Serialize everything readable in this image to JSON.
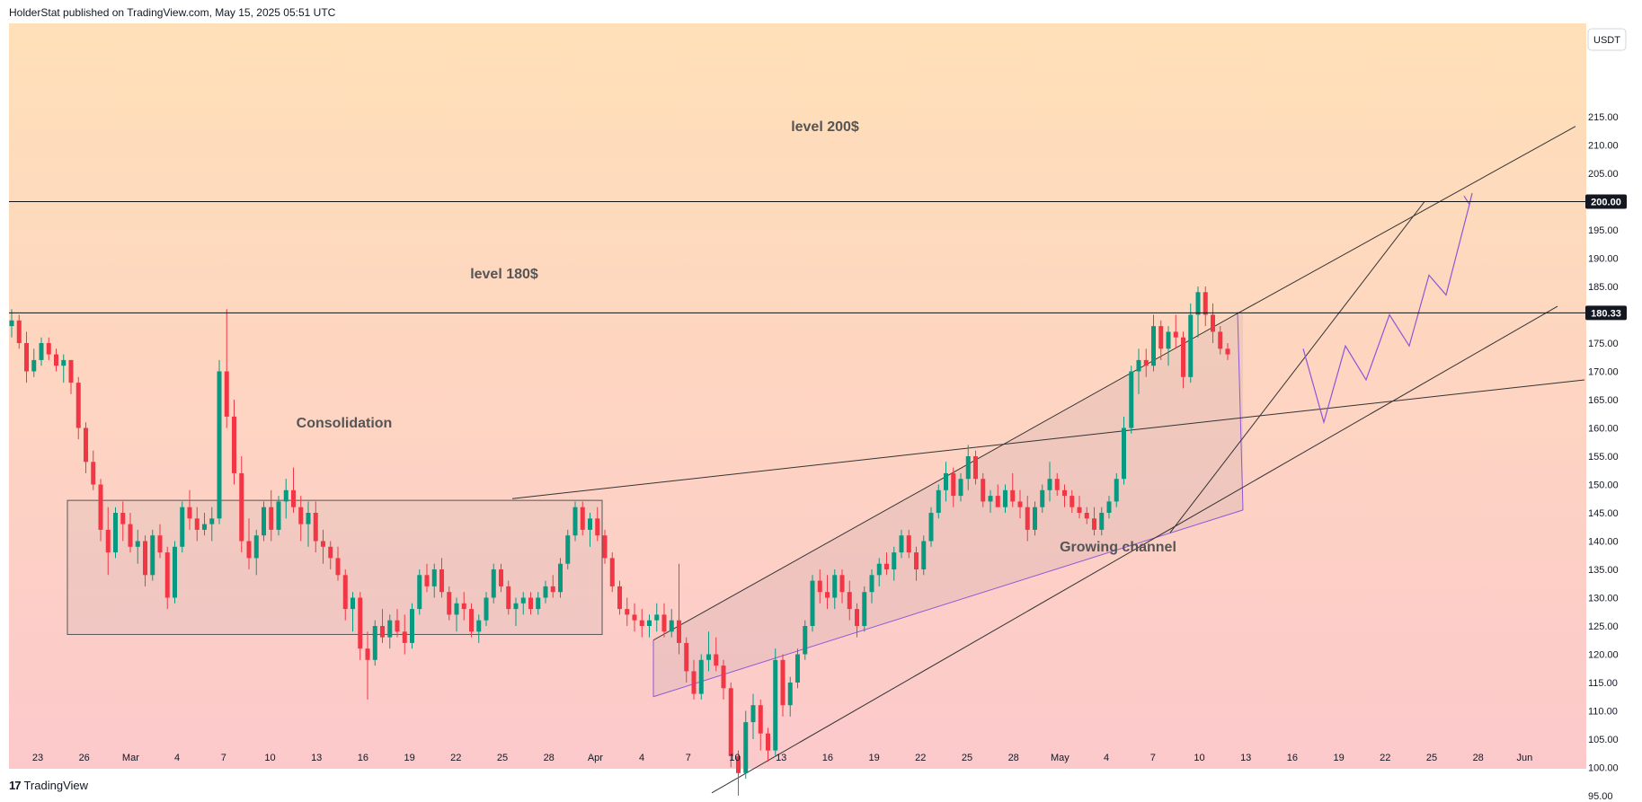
{
  "header": {
    "text": "HolderStat published on TradingView.com, May 15, 2025 05:51 UTC"
  },
  "footer": {
    "logo": "17",
    "brand": "TradingView"
  },
  "colors": {
    "up": "#089981",
    "down": "#f23645",
    "bg_top": "#ffe0b8",
    "bg_bottom": "#fcc9cb",
    "channel": "#8e57d6"
  },
  "chart_data": {
    "type": "candlestick",
    "currency": "USDT",
    "ylim": [
      92,
      220
    ],
    "y_ticks": [
      "215.00",
      "210.00",
      "205.00",
      "195.00",
      "190.00",
      "185.00",
      "175.00",
      "170.00",
      "165.00",
      "160.00",
      "155.00",
      "150.00",
      "145.00",
      "140.00",
      "135.00",
      "130.00",
      "125.00",
      "120.00",
      "115.00",
      "110.00",
      "105.00",
      "100.00",
      "95.00"
    ],
    "price_labels": {
      "level200": "200.00",
      "level180": "180.33"
    },
    "x_ticks": [
      "23",
      "26",
      "Mar",
      "4",
      "7",
      "10",
      "13",
      "16",
      "19",
      "22",
      "25",
      "28",
      "Apr",
      "4",
      "7",
      "10",
      "13",
      "16",
      "19",
      "22",
      "25",
      "28",
      "May",
      "4",
      "7",
      "10",
      "13",
      "16",
      "19",
      "22",
      "25",
      "28",
      "Jun"
    ],
    "annotations": {
      "level200": "level 200$",
      "level180": "level 180$",
      "consolidation": "Consolidation",
      "growing_channel": "Growing channel"
    },
    "candles": [
      [
        178,
        181,
        176,
        179
      ],
      [
        179,
        180,
        174,
        175
      ],
      [
        175,
        177,
        168,
        170
      ],
      [
        170,
        174,
        169,
        172
      ],
      [
        172,
        176,
        171,
        175
      ],
      [
        175,
        176,
        172,
        173
      ],
      [
        173,
        174,
        170,
        171
      ],
      [
        171,
        173,
        168,
        172
      ],
      [
        172,
        172,
        166,
        168
      ],
      [
        168,
        169,
        158,
        160
      ],
      [
        160,
        161,
        152,
        154
      ],
      [
        154,
        156,
        149,
        150
      ],
      [
        150,
        151,
        140,
        142
      ],
      [
        142,
        146,
        134,
        138
      ],
      [
        138,
        146,
        137,
        145
      ],
      [
        145,
        147,
        140,
        143
      ],
      [
        143,
        145,
        138,
        139
      ],
      [
        139,
        142,
        136,
        140
      ],
      [
        140,
        141,
        132,
        134
      ],
      [
        134,
        142,
        133,
        141
      ],
      [
        141,
        143,
        137,
        138
      ],
      [
        138,
        139,
        128,
        130
      ],
      [
        130,
        140,
        129,
        139
      ],
      [
        139,
        147,
        138,
        146
      ],
      [
        146,
        149,
        142,
        144
      ],
      [
        144,
        146,
        140,
        142
      ],
      [
        142,
        145,
        141,
        143
      ],
      [
        143,
        146,
        140,
        144
      ],
      [
        144,
        172,
        143,
        170
      ],
      [
        170,
        181,
        160,
        162
      ],
      [
        162,
        165,
        150,
        152
      ],
      [
        152,
        155,
        138,
        140
      ],
      [
        140,
        144,
        135,
        137
      ],
      [
        137,
        142,
        134,
        141
      ],
      [
        141,
        147,
        140,
        146
      ],
      [
        146,
        149,
        140,
        142
      ],
      [
        142,
        148,
        141,
        147
      ],
      [
        147,
        151,
        144,
        149
      ],
      [
        149,
        153,
        145,
        146
      ],
      [
        146,
        148,
        140,
        143
      ],
      [
        143,
        147,
        139,
        145
      ],
      [
        145,
        147,
        138,
        140
      ],
      [
        140,
        142,
        136,
        139
      ],
      [
        139,
        140,
        135,
        137
      ],
      [
        137,
        139,
        133,
        134
      ],
      [
        134,
        135,
        126,
        128
      ],
      [
        128,
        131,
        124,
        130
      ],
      [
        130,
        131,
        119,
        121
      ],
      [
        121,
        124,
        112,
        119
      ],
      [
        119,
        126,
        118,
        125
      ],
      [
        125,
        128,
        122,
        123
      ],
      [
        123,
        127,
        121,
        126
      ],
      [
        126,
        128,
        123,
        124
      ],
      [
        124,
        127,
        120,
        122
      ],
      [
        122,
        129,
        121,
        128
      ],
      [
        128,
        135,
        127,
        134
      ],
      [
        134,
        136,
        131,
        132
      ],
      [
        132,
        136,
        130,
        135
      ],
      [
        135,
        137,
        130,
        131
      ],
      [
        131,
        132,
        126,
        127
      ],
      [
        127,
        130,
        124,
        129
      ],
      [
        129,
        131,
        126,
        128
      ],
      [
        128,
        129,
        123,
        124
      ],
      [
        124,
        127,
        122,
        126
      ],
      [
        126,
        131,
        125,
        130
      ],
      [
        130,
        136,
        129,
        135
      ],
      [
        135,
        136,
        131,
        132
      ],
      [
        132,
        133,
        127,
        128
      ],
      [
        128,
        130,
        125,
        129
      ],
      [
        129,
        131,
        127,
        130
      ],
      [
        130,
        131,
        127,
        128
      ],
      [
        128,
        131,
        127,
        130
      ],
      [
        130,
        133,
        129,
        132
      ],
      [
        132,
        134,
        130,
        131
      ],
      [
        131,
        137,
        130,
        136
      ],
      [
        136,
        142,
        135,
        141
      ],
      [
        141,
        147,
        140,
        146
      ],
      [
        146,
        147,
        141,
        142
      ],
      [
        142,
        145,
        139,
        144
      ],
      [
        144,
        146,
        140,
        141
      ],
      [
        141,
        142,
        136,
        137
      ],
      [
        137,
        138,
        131,
        132
      ],
      [
        132,
        133,
        127,
        128
      ],
      [
        128,
        130,
        125,
        127
      ],
      [
        127,
        129,
        124,
        126
      ],
      [
        126,
        128,
        123,
        125
      ],
      [
        125,
        127,
        123,
        126
      ],
      [
        126,
        129,
        124,
        127
      ],
      [
        127,
        129,
        123,
        124
      ],
      [
        124,
        128,
        123,
        126
      ],
      [
        126,
        136,
        120,
        122
      ],
      [
        122,
        123,
        115,
        117
      ],
      [
        117,
        119,
        112,
        113
      ],
      [
        113,
        120,
        112,
        119
      ],
      [
        119,
        124,
        117,
        120
      ],
      [
        120,
        123,
        117,
        118
      ],
      [
        118,
        119,
        112,
        114
      ],
      [
        114,
        115,
        100,
        102
      ],
      [
        102,
        103,
        95,
        99
      ],
      [
        99,
        110,
        98,
        108
      ],
      [
        108,
        113,
        105,
        111
      ],
      [
        111,
        112,
        103,
        106
      ],
      [
        106,
        107,
        101,
        103
      ],
      [
        103,
        121,
        102,
        119
      ],
      [
        119,
        120,
        109,
        111
      ],
      [
        111,
        116,
        109,
        115
      ],
      [
        115,
        121,
        114,
        120
      ],
      [
        120,
        126,
        119,
        125
      ],
      [
        125,
        134,
        124,
        133
      ],
      [
        133,
        135,
        129,
        131
      ],
      [
        131,
        134,
        128,
        130
      ],
      [
        130,
        135,
        128,
        134
      ],
      [
        134,
        135,
        129,
        131
      ],
      [
        131,
        133,
        126,
        128
      ],
      [
        128,
        129,
        123,
        125
      ],
      [
        125,
        132,
        124,
        131
      ],
      [
        131,
        135,
        129,
        134
      ],
      [
        134,
        137,
        132,
        136
      ],
      [
        136,
        138,
        134,
        135
      ],
      [
        135,
        139,
        133,
        138
      ],
      [
        138,
        142,
        137,
        141
      ],
      [
        141,
        142,
        137,
        138
      ],
      [
        138,
        139,
        133,
        135
      ],
      [
        135,
        141,
        134,
        140
      ],
      [
        140,
        146,
        139,
        145
      ],
      [
        145,
        150,
        144,
        149
      ],
      [
        149,
        154,
        147,
        152
      ],
      [
        152,
        153,
        146,
        148
      ],
      [
        148,
        152,
        147,
        151
      ],
      [
        151,
        157,
        149,
        155
      ],
      [
        155,
        156,
        150,
        151
      ],
      [
        151,
        152,
        146,
        147
      ],
      [
        147,
        149,
        145,
        148
      ],
      [
        148,
        150,
        146,
        146
      ],
      [
        146,
        150,
        145,
        149
      ],
      [
        149,
        152,
        146,
        147
      ],
      [
        147,
        149,
        144,
        146
      ],
      [
        146,
        148,
        140,
        142
      ],
      [
        142,
        147,
        141,
        146
      ],
      [
        146,
        150,
        145,
        149
      ],
      [
        149,
        154,
        147,
        151
      ],
      [
        151,
        152,
        148,
        149
      ],
      [
        149,
        150,
        146,
        148
      ],
      [
        148,
        149,
        145,
        146
      ],
      [
        146,
        148,
        144,
        145
      ],
      [
        145,
        146,
        143,
        144
      ],
      [
        144,
        146,
        141,
        142
      ],
      [
        142,
        146,
        141,
        145
      ],
      [
        145,
        148,
        144,
        147
      ],
      [
        147,
        152,
        146,
        151
      ],
      [
        151,
        162,
        150,
        160
      ],
      [
        160,
        171,
        159,
        170
      ],
      [
        170,
        174,
        166,
        172
      ],
      [
        172,
        174,
        169,
        171
      ],
      [
        171,
        180,
        170,
        178
      ],
      [
        178,
        179,
        172,
        174
      ],
      [
        174,
        178,
        171,
        177
      ],
      [
        177,
        180,
        174,
        176
      ],
      [
        176,
        177,
        167,
        169
      ],
      [
        169,
        182,
        168,
        180
      ],
      [
        180,
        185,
        176,
        184
      ],
      [
        184,
        185,
        178,
        180
      ],
      [
        180,
        182,
        175,
        177
      ],
      [
        177,
        178,
        173,
        174
      ],
      [
        174,
        175,
        172,
        173
      ]
    ],
    "lines": {
      "h200": 200,
      "h180": 180.33
    }
  }
}
